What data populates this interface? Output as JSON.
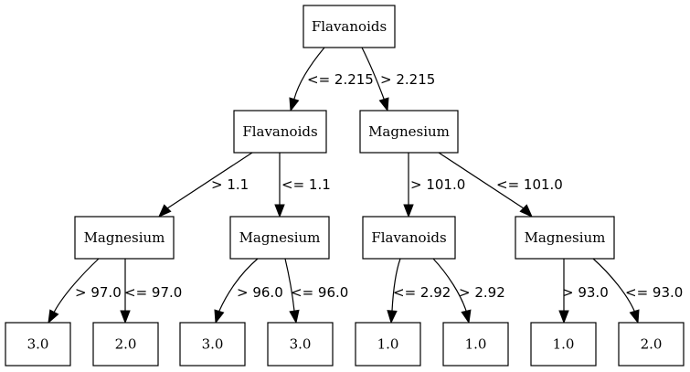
{
  "tree": {
    "nodes": [
      {
        "id": "n0",
        "label": "Flavanoids"
      },
      {
        "id": "n1",
        "label": "Flavanoids"
      },
      {
        "id": "n2",
        "label": "Magnesium"
      },
      {
        "id": "n3",
        "label": "Magnesium"
      },
      {
        "id": "n4",
        "label": "Magnesium"
      },
      {
        "id": "n5",
        "label": "Flavanoids"
      },
      {
        "id": "n6",
        "label": "Magnesium"
      },
      {
        "id": "n7",
        "label": "3.0"
      },
      {
        "id": "n8",
        "label": "2.0"
      },
      {
        "id": "n9",
        "label": "3.0"
      },
      {
        "id": "n10",
        "label": "3.0"
      },
      {
        "id": "n11",
        "label": "1.0"
      },
      {
        "id": "n12",
        "label": "1.0"
      },
      {
        "id": "n13",
        "label": "1.0"
      },
      {
        "id": "n14",
        "label": "2.0"
      }
    ],
    "edges": [
      {
        "from": "n0",
        "to": "n1",
        "label": "<= 2.215"
      },
      {
        "from": "n0",
        "to": "n2",
        "label": "> 2.215"
      },
      {
        "from": "n1",
        "to": "n3",
        "label": "> 1.1"
      },
      {
        "from": "n1",
        "to": "n4",
        "label": "<= 1.1"
      },
      {
        "from": "n2",
        "to": "n5",
        "label": "> 101.0"
      },
      {
        "from": "n2",
        "to": "n6",
        "label": "<= 101.0"
      },
      {
        "from": "n3",
        "to": "n7",
        "label": "> 97.0"
      },
      {
        "from": "n3",
        "to": "n8",
        "label": "<= 97.0"
      },
      {
        "from": "n4",
        "to": "n9",
        "label": "> 96.0"
      },
      {
        "from": "n4",
        "to": "n10",
        "label": "<= 96.0"
      },
      {
        "from": "n5",
        "to": "n11",
        "label": "<= 2.92"
      },
      {
        "from": "n5",
        "to": "n12",
        "label": "> 2.92"
      },
      {
        "from": "n6",
        "to": "n13",
        "label": "> 93.0"
      },
      {
        "from": "n6",
        "to": "n14",
        "label": "<= 93.0"
      }
    ]
  }
}
